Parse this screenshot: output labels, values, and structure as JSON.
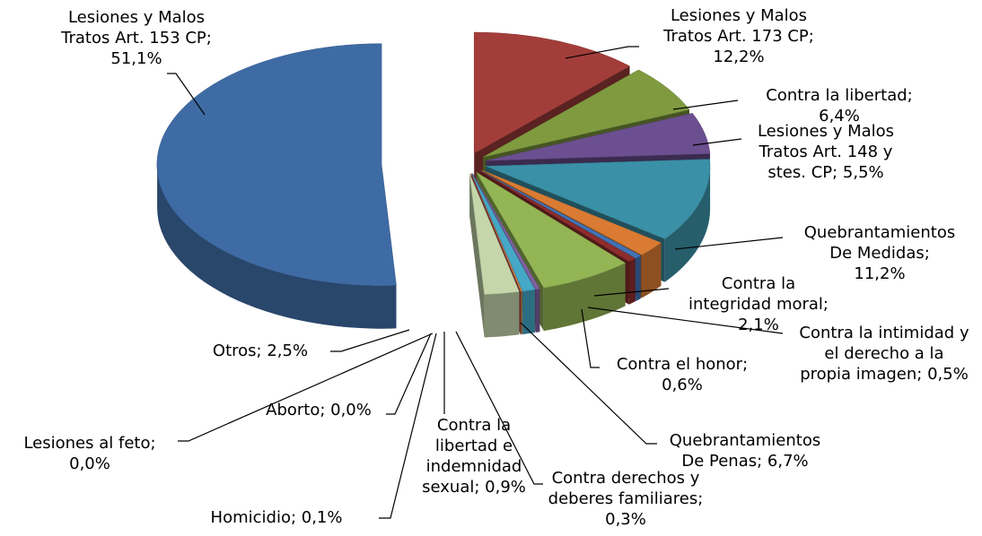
{
  "chart_data": {
    "type": "pie3d",
    "values": [
      12.2,
      6.4,
      5.5,
      11.2,
      2.1,
      0.5,
      0.6,
      6.7,
      0.3,
      0.9,
      0.1,
      0.0,
      0.0,
      2.5,
      51.1
    ],
    "value_labels": [
      "Lesiones y Malos Tratos Art. 173 CP; 12,2%",
      "Contra la libertad; 6,4%",
      "Lesiones y Malos Tratos Art. 148 y stes. CP; 5,5%",
      "Quebrantamientos De Medidas; 11,2%",
      "Contra la integridad moral; 2,1%",
      "Contra la intimidad y el derecho a la propia imagen; 0,5%",
      "Contra el honor; 0,6%",
      "Quebrantamientos De Penas; 6,7%",
      "Contra derechos y deberes familiares; 0,3%",
      "Contra la libertad e indemnidad sexual; 0,9%",
      "Homicidio; 0,1%",
      "Lesiones al feto; 0,0%",
      "Aborto; 0,0%",
      "Otros; 2,5%",
      "Lesiones y Malos Tratos Art. 153 CP; 51,1%"
    ],
    "colors": [
      "#a33d3a",
      "#7f9a3f",
      "#6b4f90",
      "#3a90a6",
      "#d97b33",
      "#4072b4",
      "#8e2d2b",
      "#93b554",
      "#7e60a0",
      "#45a8c7",
      "#e08a40",
      "#5a7fbf",
      "#b24a47",
      "#c5d6aa",
      "#3f6ba4"
    ]
  }
}
